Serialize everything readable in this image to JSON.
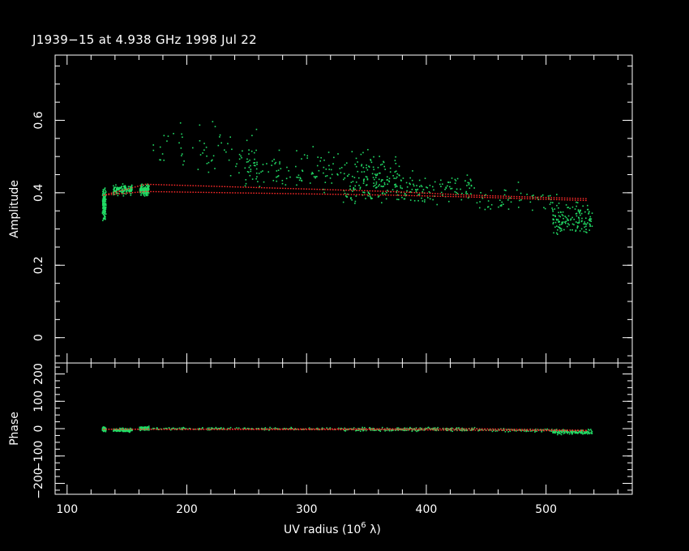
{
  "chart_data": {
    "type": "scatter",
    "title": "J1939−15 at 4.938 GHz 1998 Jul 22",
    "xlabel": "UV radius  (10",
    "xlabel_exp": "6",
    "xlabel_unit": " λ)",
    "xlim": [
      90,
      572
    ],
    "xticks": [
      100,
      200,
      300,
      400,
      500
    ],
    "panels": [
      {
        "name": "amplitude",
        "ylabel": "Amplitude",
        "ylim": [
          -0.07,
          0.78
        ],
        "yticks": [
          0,
          0.2,
          0.4,
          0.6
        ],
        "ytick_labels": [
          "0",
          "0.2",
          "0.4",
          "0.6"
        ],
        "data_color": "#22dd66",
        "model_color": "#ff2a2a",
        "data_clusters": [
          {
            "x": [
              129,
              132
            ],
            "y_center": 0.37,
            "y_spread": 0.06,
            "n": 140
          },
          {
            "x": [
              138,
              154
            ],
            "y_center": 0.41,
            "y_spread": 0.02,
            "n": 140
          },
          {
            "x": [
              160,
              168
            ],
            "y_center": 0.41,
            "y_spread": 0.02,
            "n": 140
          },
          {
            "x": [
              170,
              260
            ],
            "y_center": 0.52,
            "y_spread": 0.1,
            "n": 60
          },
          {
            "x": [
              240,
              380
            ],
            "y_center": 0.46,
            "y_spread": 0.08,
            "n": 200
          },
          {
            "x": [
              330,
              440
            ],
            "y_center": 0.41,
            "y_spread": 0.06,
            "n": 200
          },
          {
            "x": [
              440,
              510
            ],
            "y_center": 0.38,
            "y_spread": 0.06,
            "n": 60
          },
          {
            "x": [
              505,
              538
            ],
            "y_center": 0.33,
            "y_spread": 0.06,
            "n": 140
          }
        ],
        "model_upper": {
          "x": [
            130,
            165,
            370,
            435,
            535
          ],
          "y": [
            0.395,
            0.425,
            0.405,
            0.395,
            0.385
          ]
        },
        "model_lower": {
          "x": [
            130,
            165,
            370,
            435,
            535
          ],
          "y": [
            0.395,
            0.405,
            0.395,
            0.39,
            0.38
          ]
        }
      },
      {
        "name": "phase",
        "ylabel": "Phase",
        "ylim": [
          -240,
          240
        ],
        "yticks": [
          -200,
          -100,
          0,
          100,
          200
        ],
        "ytick_labels": [
          "−200",
          "−100",
          "0",
          "100",
          "200"
        ],
        "data_color": "#22dd66",
        "model_color": "#ff2a2a",
        "data_clusters": [
          {
            "x": [
              129,
              132
            ],
            "y_center": 0,
            "y_spread": 12,
            "n": 120
          },
          {
            "x": [
              138,
              154
            ],
            "y_center": -3,
            "y_spread": 9,
            "n": 160
          },
          {
            "x": [
              160,
              168
            ],
            "y_center": 3,
            "y_spread": 10,
            "n": 120
          },
          {
            "x": [
              170,
              330
            ],
            "y_center": 2,
            "y_spread": 6,
            "n": 160
          },
          {
            "x": [
              330,
              440
            ],
            "y_center": 0,
            "y_spread": 10,
            "n": 220
          },
          {
            "x": [
              440,
              510
            ],
            "y_center": -4,
            "y_spread": 8,
            "n": 80
          },
          {
            "x": [
              505,
              538
            ],
            "y_center": -10,
            "y_spread": 12,
            "n": 140
          }
        ],
        "model_upper": {
          "x": [
            130,
            435,
            535
          ],
          "y": [
            0,
            2,
            -4
          ]
        },
        "model_lower": {
          "x": [
            130,
            370,
            535
          ],
          "y": [
            0,
            -2,
            -6
          ]
        }
      }
    ]
  }
}
